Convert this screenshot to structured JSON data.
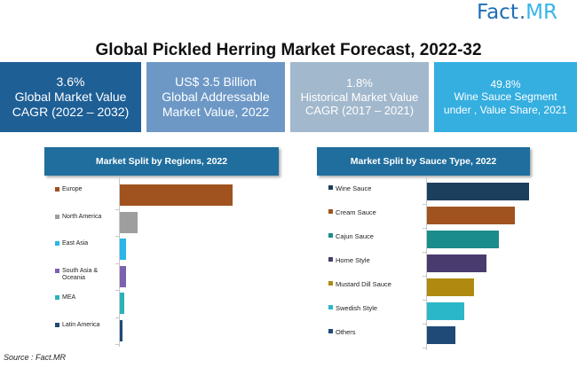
{
  "logo": {
    "fact": "Fact",
    "dot": ".",
    "mr": "MR"
  },
  "title": "Global Pickled Herring  Market Forecast, 2022-32",
  "kpis": [
    {
      "line1": "3.6%",
      "line2": "Global Market Value CAGR (2022 – 2032)"
    },
    {
      "line1": "US$ 3.5 Billion",
      "line2": "Global Addressable Market Value, 2022"
    },
    {
      "line1": "1.8%",
      "line2": "Historical Market Value CAGR (2017 – 2021)"
    },
    {
      "line1": "49.8%",
      "line2": "Wine Sauce Segment under , Value Share, 2021"
    }
  ],
  "source": "Source : Fact.MR",
  "chart_data": [
    {
      "type": "bar",
      "orientation": "horizontal",
      "title": "Market Split by Regions, 2022",
      "categories": [
        "Europe",
        "North America",
        "East Asia",
        "South Asia & Oceania",
        "MEA",
        "Latin America"
      ],
      "values": [
        38,
        6,
        2,
        2,
        1.5,
        1
      ],
      "colors": [
        "#a0521f",
        "#9e9e9e",
        "#29b6e8",
        "#7b62b0",
        "#2ab3b8",
        "#1f4a77"
      ],
      "xlim": [
        0,
        45
      ]
    },
    {
      "type": "bar",
      "orientation": "horizontal",
      "title": "Market Split by Sauce Type, 2022",
      "categories": [
        "Wine Sauce",
        "Cream Sauce",
        "Cajun Sauce",
        "Home Style",
        "Mustard Dill Sauce",
        "Swedish Style",
        "Others"
      ],
      "values": [
        49.8,
        43,
        35,
        29,
        23,
        18,
        14
      ],
      "colors": [
        "#1d3f5e",
        "#a0521f",
        "#1b8c8c",
        "#4a3b6e",
        "#b08a10",
        "#2ab8c8",
        "#1f4a77"
      ],
      "xlim": [
        0,
        52
      ]
    }
  ]
}
